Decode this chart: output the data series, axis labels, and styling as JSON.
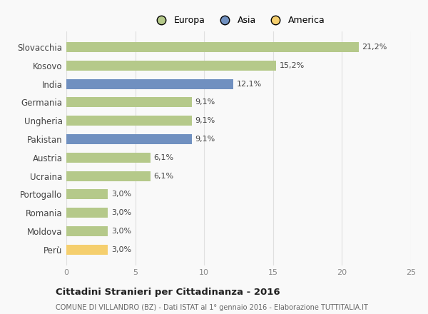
{
  "categories": [
    "Slovacchia",
    "Kosovo",
    "India",
    "Germania",
    "Ungheria",
    "Pakistan",
    "Austria",
    "Ucraina",
    "Portogallo",
    "Romania",
    "Moldova",
    "Perù"
  ],
  "values": [
    21.2,
    15.2,
    12.1,
    9.1,
    9.1,
    9.1,
    6.1,
    6.1,
    3.0,
    3.0,
    3.0,
    3.0
  ],
  "labels": [
    "21,2%",
    "15,2%",
    "12,1%",
    "9,1%",
    "9,1%",
    "9,1%",
    "6,1%",
    "6,1%",
    "3,0%",
    "3,0%",
    "3,0%",
    "3,0%"
  ],
  "colors": [
    "#b5c98a",
    "#b5c98a",
    "#7090c0",
    "#b5c98a",
    "#b5c98a",
    "#7090c0",
    "#b5c98a",
    "#b5c98a",
    "#b5c98a",
    "#b5c98a",
    "#b5c98a",
    "#f5cf6e"
  ],
  "legend_labels": [
    "Europa",
    "Asia",
    "America"
  ],
  "legend_colors": [
    "#b5c98a",
    "#7090c0",
    "#f5cf6e"
  ],
  "title": "Cittadini Stranieri per Cittadinanza - 2016",
  "subtitle": "COMUNE DI VILLANDRO (BZ) - Dati ISTAT al 1° gennaio 2016 - Elaborazione TUTTITALIA.IT",
  "xlim": [
    0,
    25
  ],
  "xticks": [
    0,
    5,
    10,
    15,
    20,
    25
  ],
  "background_color": "#f9f9f9",
  "grid_color": "#e0e0e0",
  "label_fontsize": 8,
  "ytick_fontsize": 8.5,
  "xtick_fontsize": 8
}
